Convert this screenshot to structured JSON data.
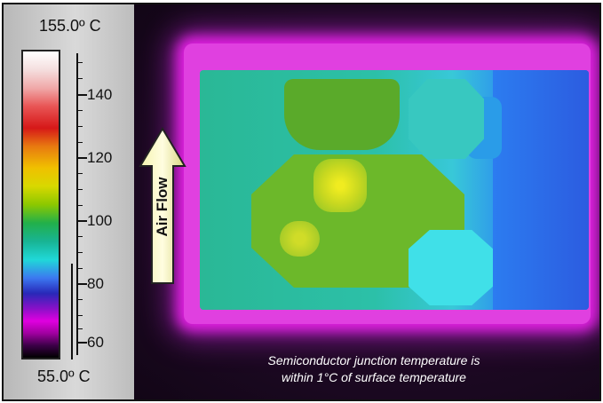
{
  "scale": {
    "max_label": "155.0º C",
    "min_label": "55.0º C",
    "ticks": [
      "140",
      "120",
      "100",
      "80",
      "60"
    ]
  },
  "arrow": {
    "label": "Air Flow",
    "icon": "up-arrow-icon"
  },
  "caption": {
    "line1": "Semiconductor junction temperature is",
    "line2": "within 1°C of surface temperature"
  },
  "colors": {
    "hot": "#f0ec20",
    "warm": "#6cb82a",
    "cool": "#2c5ce0",
    "border_glow": "#e020e0"
  }
}
